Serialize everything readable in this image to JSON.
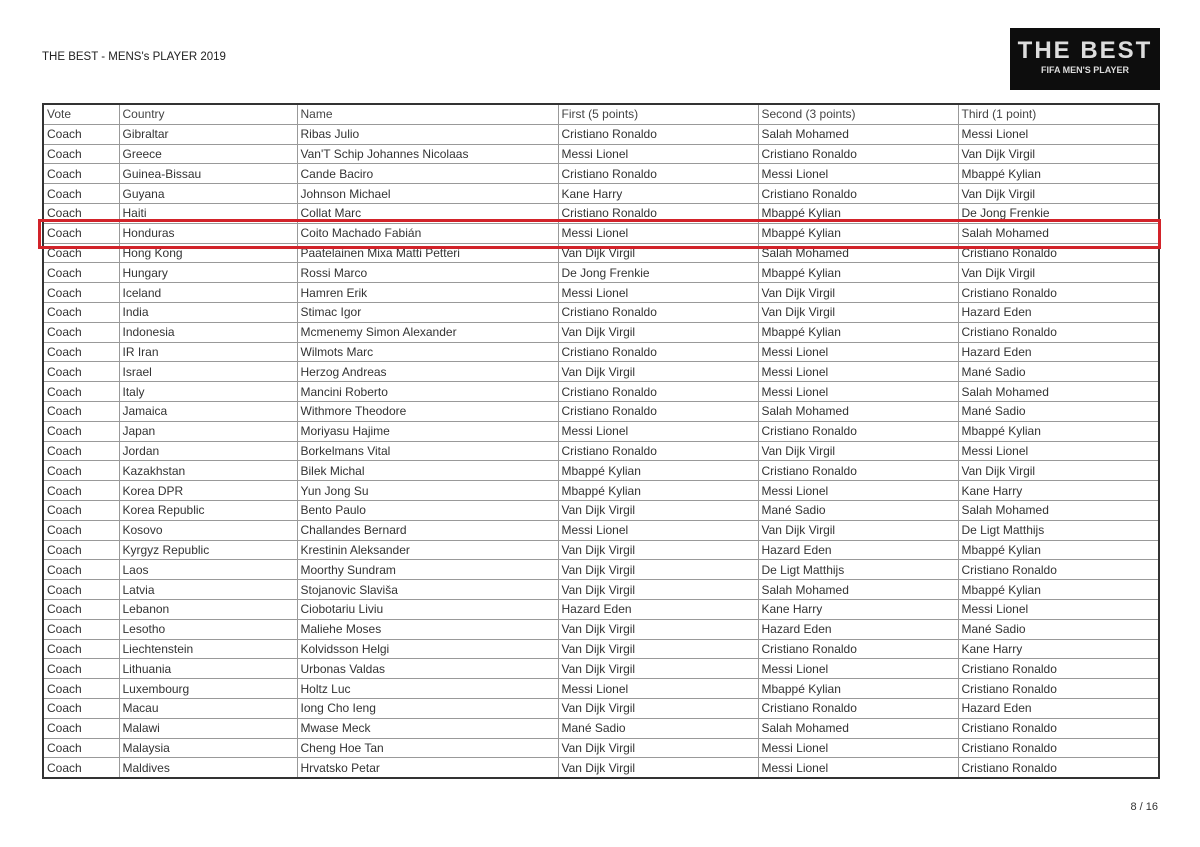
{
  "document": {
    "title": "THE BEST - MENS's PLAYER 2019",
    "logo": {
      "line1": "THE BEST",
      "line2": "FIFA MEN'S PLAYER"
    },
    "page": "8 / 16",
    "highlight_color": "#d2232a",
    "highlighted_row": "Honduras"
  },
  "table": {
    "headers": [
      "Vote",
      "Country",
      "Name",
      "First (5 points)",
      "Second (3 points)",
      "Third (1 point)"
    ],
    "rows": [
      [
        "Coach",
        "Gibraltar",
        "Ribas Julio",
        "Cristiano Ronaldo",
        "Salah Mohamed",
        "Messi Lionel"
      ],
      [
        "Coach",
        "Greece",
        "Van'T Schip Johannes Nicolaas",
        "Messi Lionel",
        "Cristiano Ronaldo",
        "Van Dijk Virgil"
      ],
      [
        "Coach",
        "Guinea-Bissau",
        "Cande Baciro",
        "Cristiano Ronaldo",
        "Messi Lionel",
        "Mbappé Kylian"
      ],
      [
        "Coach",
        "Guyana",
        "Johnson Michael",
        "Kane Harry",
        "Cristiano Ronaldo",
        "Van Dijk Virgil"
      ],
      [
        "Coach",
        "Haiti",
        "Collat Marc",
        "Cristiano Ronaldo",
        "Mbappé Kylian",
        "De Jong Frenkie"
      ],
      [
        "Coach",
        "Honduras",
        "Coito Machado Fabián",
        "Messi Lionel",
        "Mbappé Kylian",
        "Salah Mohamed"
      ],
      [
        "Coach",
        "Hong Kong",
        "Paatelainen Mixa Matti Petteri",
        "Van Dijk Virgil",
        "Salah Mohamed",
        "Cristiano Ronaldo"
      ],
      [
        "Coach",
        "Hungary",
        "Rossi Marco",
        "De Jong Frenkie",
        "Mbappé Kylian",
        "Van Dijk Virgil"
      ],
      [
        "Coach",
        "Iceland",
        "Hamren Erik",
        "Messi Lionel",
        "Van Dijk Virgil",
        "Cristiano Ronaldo"
      ],
      [
        "Coach",
        "India",
        "Stimac Igor",
        "Cristiano Ronaldo",
        "Van Dijk Virgil",
        "Hazard Eden"
      ],
      [
        "Coach",
        "Indonesia",
        "Mcmenemy Simon Alexander",
        "Van Dijk Virgil",
        "Mbappé Kylian",
        "Cristiano Ronaldo"
      ],
      [
        "Coach",
        "IR Iran",
        "Wilmots Marc",
        "Cristiano Ronaldo",
        "Messi Lionel",
        "Hazard Eden"
      ],
      [
        "Coach",
        "Israel",
        "Herzog Andreas",
        "Van Dijk Virgil",
        "Messi Lionel",
        "Mané Sadio"
      ],
      [
        "Coach",
        "Italy",
        "Mancini Roberto",
        "Cristiano Ronaldo",
        "Messi Lionel",
        "Salah Mohamed"
      ],
      [
        "Coach",
        "Jamaica",
        "Withmore Theodore",
        "Cristiano Ronaldo",
        "Salah Mohamed",
        "Mané Sadio"
      ],
      [
        "Coach",
        "Japan",
        "Moriyasu Hajime",
        "Messi Lionel",
        "Cristiano Ronaldo",
        "Mbappé Kylian"
      ],
      [
        "Coach",
        "Jordan",
        "Borkelmans Vital",
        "Cristiano Ronaldo",
        "Van Dijk Virgil",
        "Messi Lionel"
      ],
      [
        "Coach",
        "Kazakhstan",
        "Bilek Michal",
        "Mbappé Kylian",
        "Cristiano Ronaldo",
        "Van Dijk Virgil"
      ],
      [
        "Coach",
        "Korea DPR",
        "Yun Jong Su",
        "Mbappé Kylian",
        "Messi Lionel",
        "Kane Harry"
      ],
      [
        "Coach",
        "Korea Republic",
        "Bento Paulo",
        "Van Dijk Virgil",
        "Mané Sadio",
        "Salah Mohamed"
      ],
      [
        "Coach",
        "Kosovo",
        "Challandes Bernard",
        "Messi Lionel",
        "Van Dijk Virgil",
        "De Ligt Matthijs"
      ],
      [
        "Coach",
        "Kyrgyz Republic",
        "Krestinin Aleksander",
        "Van Dijk Virgil",
        "Hazard Eden",
        "Mbappé Kylian"
      ],
      [
        "Coach",
        "Laos",
        "Moorthy Sundram",
        "Van Dijk Virgil",
        "De Ligt Matthijs",
        "Cristiano Ronaldo"
      ],
      [
        "Coach",
        "Latvia",
        "Stojanovic Slaviša",
        "Van Dijk Virgil",
        "Salah Mohamed",
        "Mbappé Kylian"
      ],
      [
        "Coach",
        "Lebanon",
        "Ciobotariu Liviu",
        "Hazard Eden",
        "Kane Harry",
        "Messi Lionel"
      ],
      [
        "Coach",
        "Lesotho",
        "Maliehe Moses",
        "Van Dijk Virgil",
        "Hazard Eden",
        "Mané Sadio"
      ],
      [
        "Coach",
        "Liechtenstein",
        "Kolvidsson Helgi",
        "Van Dijk Virgil",
        "Cristiano Ronaldo",
        "Kane Harry"
      ],
      [
        "Coach",
        "Lithuania",
        "Urbonas Valdas",
        "Van Dijk Virgil",
        "Messi Lionel",
        "Cristiano Ronaldo"
      ],
      [
        "Coach",
        "Luxembourg",
        "Holtz Luc",
        "Messi Lionel",
        "Mbappé Kylian",
        "Cristiano Ronaldo"
      ],
      [
        "Coach",
        "Macau",
        "Iong  Cho Ieng",
        "Van Dijk Virgil",
        "Cristiano Ronaldo",
        "Hazard Eden"
      ],
      [
        "Coach",
        "Malawi",
        "Mwase Meck",
        "Mané Sadio",
        "Salah Mohamed",
        "Cristiano Ronaldo"
      ],
      [
        "Coach",
        "Malaysia",
        "Cheng Hoe Tan",
        "Van Dijk Virgil",
        "Messi Lionel",
        "Cristiano Ronaldo"
      ],
      [
        "Coach",
        "Maldives",
        "Hrvatsko Petar",
        "Van Dijk Virgil",
        "Messi Lionel",
        "Cristiano Ronaldo"
      ]
    ]
  }
}
